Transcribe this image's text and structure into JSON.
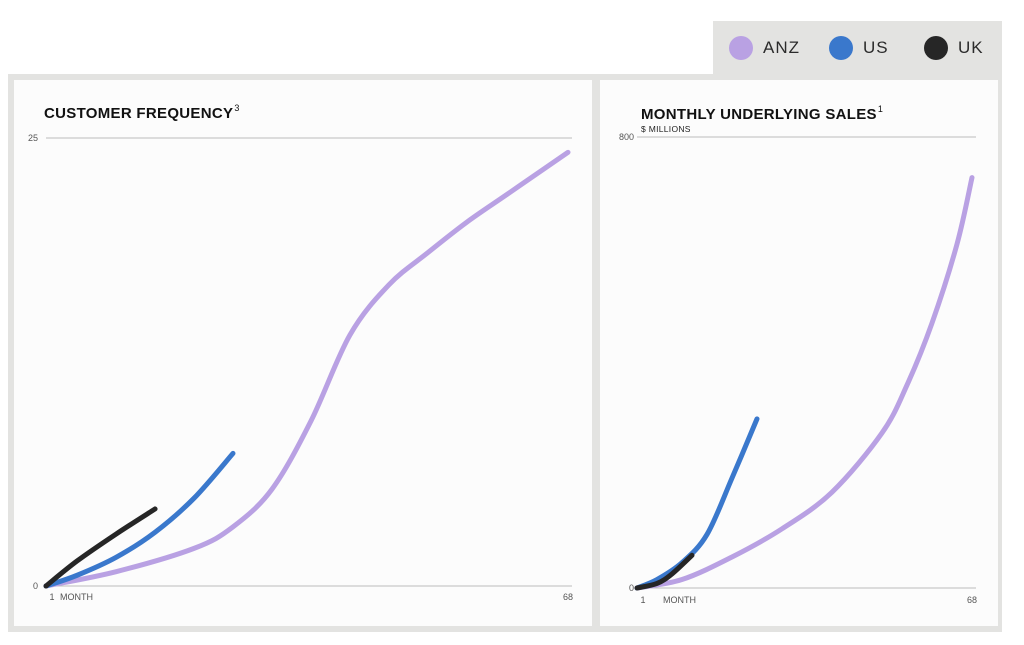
{
  "legend": {
    "items": [
      {
        "label": "ANZ",
        "color": "#b9a1e3"
      },
      {
        "label": "US",
        "color": "#3a78cc"
      },
      {
        "label": "UK",
        "color": "#262626"
      }
    ]
  },
  "chart_data": [
    {
      "type": "line",
      "title": "CUSTOMER FREQUENCY",
      "title_superscript": "3",
      "xlabel": "MONTH",
      "ylabel": "",
      "x_ticks": [
        "1",
        "68"
      ],
      "y_ticks": [
        "0",
        "25"
      ],
      "xlim": [
        1,
        68
      ],
      "ylim": [
        0,
        25
      ],
      "grid": false,
      "series": [
        {
          "name": "ANZ",
          "color": "#b9a1e3",
          "x": [
            1,
            10,
            20,
            25,
            30,
            35,
            40,
            45,
            50,
            55,
            60,
            65,
            68
          ],
          "y": [
            0,
            0.8,
            2.1,
            3.3,
            5.4,
            9.2,
            14.0,
            16.8,
            18.6,
            20.3,
            21.8,
            23.3,
            24.2
          ]
        },
        {
          "name": "US",
          "color": "#3a78cc",
          "x": [
            1,
            5,
            10,
            15,
            20,
            25
          ],
          "y": [
            0,
            0.6,
            1.6,
            3.0,
            4.9,
            7.4
          ]
        },
        {
          "name": "UK",
          "color": "#262626",
          "x": [
            1,
            5,
            10,
            15
          ],
          "y": [
            0,
            1.4,
            2.9,
            4.3
          ]
        }
      ]
    },
    {
      "type": "line",
      "title": "MONTHLY UNDERLYING SALES",
      "title_superscript": "1",
      "subtitle": "$ MILLIONS",
      "xlabel": "MONTH",
      "ylabel": "",
      "x_ticks": [
        "1",
        "68"
      ],
      "y_ticks": [
        "0",
        "800"
      ],
      "xlim": [
        1,
        68
      ],
      "ylim": [
        0,
        800
      ],
      "grid": false,
      "series": [
        {
          "name": "ANZ",
          "color": "#b9a1e3",
          "x": [
            1,
            10,
            20,
            30,
            40,
            50,
            55,
            60,
            65,
            68
          ],
          "y": [
            0,
            15,
            55,
            105,
            170,
            275,
            360,
            470,
            610,
            728
          ]
        },
        {
          "name": "US",
          "color": "#3a78cc",
          "x": [
            1,
            5,
            10,
            15,
            20,
            25
          ],
          "y": [
            0,
            15,
            45,
            95,
            195,
            300
          ]
        },
        {
          "name": "UK",
          "color": "#262626",
          "x": [
            1,
            5,
            8,
            12
          ],
          "y": [
            0,
            8,
            25,
            58
          ]
        }
      ]
    }
  ]
}
